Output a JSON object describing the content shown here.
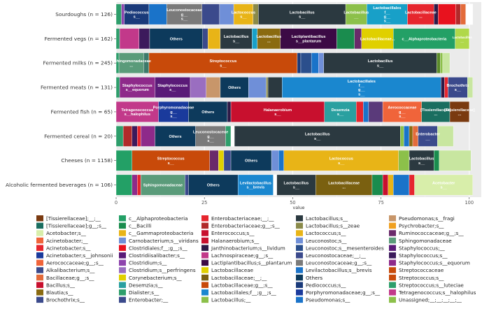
{
  "chart_data": {
    "type": "bar",
    "orientation": "horizontal",
    "stacked": true,
    "xlabel": "value",
    "ylabel": "",
    "title": "",
    "xlim": [
      0,
      100
    ],
    "xticks": [
      0,
      25,
      50,
      75,
      100
    ],
    "grid": true,
    "legend_position": "bottom",
    "categories": [
      "Sourdoughs (n = 126)",
      "Fermented vegs (n = 162)",
      "Fermented milks (n = 245)",
      "Fermented meats (n = 131)",
      "Fermented fish (n = 65)",
      "Fermented cereal (n = 20)",
      "Cheeses (n = 1158)",
      "Alcoholic fermented beverages (n = 106)"
    ],
    "bars": [
      {
        "segments": [
          {
            "value": 1.5,
            "color": "#2e9e6b",
            "label": ""
          },
          {
            "value": 0.8,
            "color": "#8e44ad",
            "label": ""
          },
          {
            "value": 7.0,
            "color": "#1a3a7a",
            "label": "Pediococcus\ns__"
          },
          {
            "value": 5.0,
            "color": "#1a73c9",
            "label": ""
          },
          {
            "value": 10.0,
            "color": "#7a7a7a",
            "label": "Leuconostocaceae\ng__\ns__"
          },
          {
            "value": 5.0,
            "color": "#3b4a8c",
            "label": ""
          },
          {
            "value": 4.0,
            "color": "#6f8fd8",
            "label": ""
          },
          {
            "value": 5.5,
            "color": "#e8b417",
            "label": "Lactococcus\ns__"
          },
          {
            "value": 1.5,
            "color": "#8a8a4a",
            "label": ""
          },
          {
            "value": 24.7,
            "color": "#2b3940",
            "label": "Lactobacillus\ns__"
          },
          {
            "value": 6.0,
            "color": "#8cc04a",
            "label": "Lactobacillus\n__"
          },
          {
            "value": 11.5,
            "color": "#18a0c8",
            "label": "Lactobacillales\nf__\ng__\ns__"
          },
          {
            "value": 7.5,
            "color": "#e6262e",
            "label": "Lactobacillaceae\n..."
          },
          {
            "value": 1.2,
            "color": "#2e1a47",
            "label": ""
          },
          {
            "value": 5.0,
            "color": "#e8121e",
            "label": ""
          },
          {
            "value": 1.3,
            "color": "#b12a2a",
            "label": ""
          },
          {
            "value": 1.5,
            "color": "#e36b3a",
            "label": ""
          },
          {
            "value": 2.0,
            "color": "#ffffff",
            "label": ""
          }
        ]
      },
      {
        "segments": [
          {
            "value": 1.0,
            "color": "#2e9e6b",
            "label": ""
          },
          {
            "value": 5.5,
            "color": "#c2398a",
            "label": ""
          },
          {
            "value": 3.0,
            "color": "#3c1a5c",
            "label": ""
          },
          {
            "value": 15.0,
            "color": "#0d3a5c",
            "label": "Others"
          },
          {
            "value": 1.5,
            "color": "#3b4a8c",
            "label": ""
          },
          {
            "value": 3.5,
            "color": "#e8b417",
            "label": ""
          },
          {
            "value": 9.0,
            "color": "#2b3940",
            "label": "Lactobacillus\ns__"
          },
          {
            "value": 1.5,
            "color": "#18a0c8",
            "label": ""
          },
          {
            "value": 6.5,
            "color": "#8a6a10",
            "label": "Lactobacillus\n..."
          },
          {
            "value": 16.0,
            "color": "#3c0a45",
            "label": "Lactiplantibacillus\ns__plantarum"
          },
          {
            "value": 5.0,
            "color": "#1a8c4e",
            "label": ""
          },
          {
            "value": 2.0,
            "color": "#6a2a6a",
            "label": ""
          },
          {
            "value": 9.0,
            "color": "#e0d000",
            "label": "Lactobacillaceae..."
          },
          {
            "value": 17.5,
            "color": "#23a066",
            "label": "c__Alphaproteobacteria"
          },
          {
            "value": 4.0,
            "color": "#b0d84a",
            "label": "Lactobacillus\n__"
          }
        ]
      },
      {
        "segments": [
          {
            "value": 0.8,
            "color": "#2e9e6b",
            "label": ""
          },
          {
            "value": 7.0,
            "color": "#5a9b7a",
            "label": "Sphingomonadaceae\n..."
          },
          {
            "value": 1.5,
            "color": "#3c7a6a",
            "label": ""
          },
          {
            "value": 42.0,
            "color": "#c84a0a",
            "label": "Streptococcus\ns__"
          },
          {
            "value": 1.0,
            "color": "#1a3a7a",
            "label": ""
          },
          {
            "value": 3.0,
            "color": "#2b4f8c",
            "label": ""
          },
          {
            "value": 2.0,
            "color": "#1a73c9",
            "label": ""
          },
          {
            "value": 1.5,
            "color": "#6f8fd8",
            "label": ""
          },
          {
            "value": 32.0,
            "color": "#2b3940",
            "label": "Lactobacillus\ns__"
          },
          {
            "value": 1.0,
            "color": "#5a8a2a",
            "label": ""
          },
          {
            "value": 0.7,
            "color": "#8cc04a",
            "label": ""
          },
          {
            "value": 2.0,
            "color": "#c8e6a0",
            "label": ""
          }
        ]
      },
      {
        "segments": [
          {
            "value": 1.0,
            "color": "#2e9e6b",
            "label": ""
          },
          {
            "value": 10.0,
            "color": "#8e2a8a",
            "label": "Staphylococcus\ns__equorum"
          },
          {
            "value": 10.0,
            "color": "#5a1a78",
            "label": "Staphylococcus\ns__"
          },
          {
            "value": 4.5,
            "color": "#9a6ec0",
            "label": ""
          },
          {
            "value": 4.0,
            "color": "#c8966a",
            "label": ""
          },
          {
            "value": 8.0,
            "color": "#0d3a5c",
            "label": "Others"
          },
          {
            "value": 5.0,
            "color": "#6f8fd8",
            "label": ""
          },
          {
            "value": 0.5,
            "color": "#8a8a4a",
            "label": ""
          },
          {
            "value": 4.0,
            "color": "#2b3940",
            "label": ""
          },
          {
            "value": 45.0,
            "color": "#1a87cf",
            "label": "Lactobacillales\nf__\ng__\ns__"
          },
          {
            "value": 1.0,
            "color": "#2e1a47",
            "label": ""
          },
          {
            "value": 1.0,
            "color": "#e6262e",
            "label": ""
          },
          {
            "value": 5.5,
            "color": "#3b4a8c",
            "label": "Brochothrix\ns__"
          },
          {
            "value": 1.5,
            "color": "#c8e6a0",
            "label": ""
          }
        ]
      },
      {
        "segments": [
          {
            "value": 12.0,
            "color": "#c2398a",
            "label": "Tetragenococcus\ns__halophilus"
          },
          {
            "value": 8.5,
            "color": "#1a3a9c",
            "label": "Porphyromonadaceae\ng__\ns__"
          },
          {
            "value": 11.0,
            "color": "#0d3a5c",
            "label": "Others"
          },
          {
            "value": 1.0,
            "color": "#2e1a47",
            "label": ""
          },
          {
            "value": 26.5,
            "color": "#c8102e",
            "label": "Halanaerobium\ns__"
          },
          {
            "value": 9.0,
            "color": "#2aa0a0",
            "label": "Desemzia\ns__"
          },
          {
            "value": 2.0,
            "color": "#e6262e",
            "label": ""
          },
          {
            "value": 1.5,
            "color": "#1a73c9",
            "label": ""
          },
          {
            "value": 4.0,
            "color": "#5a3a7a",
            "label": ""
          },
          {
            "value": 11.0,
            "color": "#f0643a",
            "label": "Aerococcaceae\ng__\ns__"
          },
          {
            "value": 8.0,
            "color": "#1a6e60",
            "label": "[Tissierellaceae]\n..."
          },
          {
            "value": 5.5,
            "color": "#7a3a10",
            "label": "[Tissierellaceae]\n..."
          }
        ]
      },
      {
        "segments": [
          {
            "value": 2.0,
            "color": "#2e9e6b",
            "label": ""
          },
          {
            "value": 2.5,
            "color": "#b12a2a",
            "label": ""
          },
          {
            "value": 1.5,
            "color": "#3c1a5c",
            "label": ""
          },
          {
            "value": 1.0,
            "color": "#e6262e",
            "label": ""
          },
          {
            "value": 4.0,
            "color": "#8e2a8a",
            "label": ""
          },
          {
            "value": 11.5,
            "color": "#0d3a5c",
            "label": "Others"
          },
          {
            "value": 8.5,
            "color": "#7a7a7a",
            "label": "Leuconostocaceae\ng__\ns__"
          },
          {
            "value": 1.5,
            "color": "#2e9e6b",
            "label": ""
          },
          {
            "value": 1.0,
            "color": "#ffffff",
            "label": ""
          },
          {
            "value": 47.0,
            "color": "#2b3940",
            "label": "Lactobacillus\ns__"
          },
          {
            "value": 1.0,
            "color": "#8cc04a",
            "label": ""
          },
          {
            "value": 1.5,
            "color": "#1a73c9",
            "label": ""
          },
          {
            "value": 1.0,
            "color": "#8a6a10",
            "label": ""
          },
          {
            "value": 1.5,
            "color": "#e36b3a",
            "label": ""
          },
          {
            "value": 5.5,
            "color": "#3b4a8c",
            "label": "Enterobacter\n__"
          },
          {
            "value": 4.5,
            "color": "#c8e6a0",
            "label": ""
          }
        ]
      },
      {
        "segments": [
          {
            "value": 4.5,
            "color": "#23a066",
            "label": ""
          },
          {
            "value": 22.0,
            "color": "#c84a0a",
            "label": "Streptococcus\ns__"
          },
          {
            "value": 2.5,
            "color": "#6a2a6a",
            "label": ""
          },
          {
            "value": 1.5,
            "color": "#e0d000",
            "label": ""
          },
          {
            "value": 2.0,
            "color": "#3b4a8c",
            "label": ""
          },
          {
            "value": 11.5,
            "color": "#0d3a5c",
            "label": "Others"
          },
          {
            "value": 2.0,
            "color": "#6f8fd8",
            "label": ""
          },
          {
            "value": 1.5,
            "color": "#1a73c9",
            "label": ""
          },
          {
            "value": 32.5,
            "color": "#e8b417",
            "label": "Lactococcus\ns__"
          },
          {
            "value": 3.0,
            "color": "#8cc04a",
            "label": ""
          },
          {
            "value": 7.0,
            "color": "#2b3940",
            "label": "Lactobacillus\ns__"
          },
          {
            "value": 1.5,
            "color": "#1a8c4e",
            "label": ""
          },
          {
            "value": 9.0,
            "color": "#c8e6a0",
            "label": ""
          }
        ]
      },
      {
        "segments": [
          {
            "value": 4.5,
            "color": "#23a066",
            "label": ""
          },
          {
            "value": 1.5,
            "color": "#8e2a8a",
            "label": ""
          },
          {
            "value": 1.0,
            "color": "#e6262e",
            "label": ""
          },
          {
            "value": 12.5,
            "color": "#5a9b7a",
            "label": "Sphingomonadaceae"
          },
          {
            "value": 1.0,
            "color": "#3b4a8c",
            "label": ""
          },
          {
            "value": 14.0,
            "color": "#0d3a5c",
            "label": "Others"
          },
          {
            "value": 10.0,
            "color": "#1a87cf",
            "label": "Levilactobacillus\ns__brevis"
          },
          {
            "value": 1.0,
            "color": "#ffffff",
            "label": ""
          },
          {
            "value": 11.0,
            "color": "#2b3940",
            "label": "Lactobacillus\ns__"
          },
          {
            "value": 16.0,
            "color": "#7a6010",
            "label": "Lactobacillaceae\n..."
          },
          {
            "value": 3.0,
            "color": "#1a8c4e",
            "label": ""
          },
          {
            "value": 1.5,
            "color": "#c8102e",
            "label": ""
          },
          {
            "value": 1.5,
            "color": "#e8b417",
            "label": ""
          },
          {
            "value": 4.5,
            "color": "#1a73c9",
            "label": ""
          },
          {
            "value": 1.5,
            "color": "#e6262e",
            "label": ""
          },
          {
            "value": 16.5,
            "color": "#d8eeaa",
            "label": "Acetobacter\ns__"
          }
        ]
      }
    ],
    "legend": [
      {
        "label": "[Tissierellaceae];__;__",
        "color": "#7a3a10"
      },
      {
        "label": "[Tissierellaceae];g__;s__",
        "color": "#1a6e60"
      },
      {
        "label": "Acetobacter;s__",
        "color": "#d8eeaa"
      },
      {
        "label": "Acinetobacter;__",
        "color": "#f0643a"
      },
      {
        "label": "Acinetobacter;s__",
        "color": "#e6262e"
      },
      {
        "label": "Acinetobacter;s__johnsonii",
        "color": "#1a3a9c"
      },
      {
        "label": "Aerococcaceae;g__;s__",
        "color": "#f0643a"
      },
      {
        "label": "Alkalibacterium;s__",
        "color": "#3b4a8c"
      },
      {
        "label": "Bacillaceae;g__;s__",
        "color": "#e36b3a"
      },
      {
        "label": "Bacillus;s__",
        "color": "#c8102e"
      },
      {
        "label": "Blautia;s__",
        "color": "#8a6a10"
      },
      {
        "label": "Brochothrix;s__",
        "color": "#3b4a8c"
      },
      {
        "label": "c__Alphaproteobacteria",
        "color": "#23a066"
      },
      {
        "label": "c__Bacilli",
        "color": "#1a8c4e"
      },
      {
        "label": "c__Gammaproteobacteria",
        "color": "#e8b417"
      },
      {
        "label": "Carnobacterium;s__viridans",
        "color": "#6f8fd8"
      },
      {
        "label": "Clostridiales;f__;g__;s__",
        "color": "#e8121e"
      },
      {
        "label": "Clostridiisalibacter;s__",
        "color": "#5a1a78"
      },
      {
        "label": "Clostridium;s__",
        "color": "#8e44ad"
      },
      {
        "label": "Clostridium;s__perfringens",
        "color": "#9a6ec0"
      },
      {
        "label": "Corynebacterium;s__",
        "color": "#e0d000"
      },
      {
        "label": "Desemzia;s__",
        "color": "#2aa0a0"
      },
      {
        "label": "Dialister;s__",
        "color": "#2e9e6b"
      },
      {
        "label": "Enterobacter;__",
        "color": "#3b4a8c"
      },
      {
        "label": "Enterobacteriaceae;__;__",
        "color": "#e6262e"
      },
      {
        "label": "Enterobacteriaceae;g__;s__",
        "color": "#b12a2a"
      },
      {
        "label": "Enterococcus;s__",
        "color": "#c8102e"
      },
      {
        "label": "Halanaerobium;s__",
        "color": "#c8102e"
      },
      {
        "label": "Janthinobacterium;s__lividum",
        "color": "#2e1a47"
      },
      {
        "label": "Lachnospiraceae;g__;s__",
        "color": "#c2398a"
      },
      {
        "label": "Lactiplantibacillus;s__plantarum",
        "color": "#3c0a45"
      },
      {
        "label": "Lactobacillaceae",
        "color": "#e0d000"
      },
      {
        "label": "Lactobacillaceae;__;__",
        "color": "#7a6010"
      },
      {
        "label": "Lactobacillaceae;g__;s__",
        "color": "#c84a0a"
      },
      {
        "label": "Lactobacillales;f__;g__;s__",
        "color": "#1a87cf"
      },
      {
        "label": "Lactobacillus;__",
        "color": "#8cc04a"
      },
      {
        "label": "Lactobacillus;s__",
        "color": "#2b3940"
      },
      {
        "label": "Lactobacillus;s__zeae",
        "color": "#8a8a4a"
      },
      {
        "label": "Lactococcus;s__",
        "color": "#e8b417"
      },
      {
        "label": "Leuconostoc;s__",
        "color": "#6f8fd8"
      },
      {
        "label": "Leuconostoc;s__mesenteroides",
        "color": "#2b4f8c"
      },
      {
        "label": "Leuconostocaceae;__;__",
        "color": "#3b4a8c"
      },
      {
        "label": "Leuconostocaceae;g__;s__",
        "color": "#7a7a7a"
      },
      {
        "label": "Levilactobacillus;s__brevis",
        "color": "#1a73c9"
      },
      {
        "label": "Others",
        "color": "#0d3a5c"
      },
      {
        "label": "Pediococcus;s__",
        "color": "#1a3a7a"
      },
      {
        "label": "Porphyromonadaceae;g__;s__",
        "color": "#1a3a9c"
      },
      {
        "label": "Pseudomonas;s__",
        "color": "#1a73c9"
      },
      {
        "label": "Pseudomonas;s__fragi",
        "color": "#c8966a"
      },
      {
        "label": "Psychrobacter;s__",
        "color": "#f0a020"
      },
      {
        "label": "Ruminococcaceae;g__;s__",
        "color": "#6a2a6a"
      },
      {
        "label": "Sphingomonadaceae",
        "color": "#5a9b7a"
      },
      {
        "label": "Staphylococcus;__",
        "color": "#5a1a78"
      },
      {
        "label": "Staphylococcus;s__",
        "color": "#3c1a5c"
      },
      {
        "label": "Staphylococcus;s__equorum",
        "color": "#8e2a8a"
      },
      {
        "label": "Streptococcaceae",
        "color": "#c84a0a"
      },
      {
        "label": "Streptococcus;s__",
        "color": "#c84a0a"
      },
      {
        "label": "Streptococcus;s__luteciae",
        "color": "#2e9e6b"
      },
      {
        "label": "Tetragenococcus;s__halophilus",
        "color": "#c2398a"
      },
      {
        "label": "Unassigned;__;__;__;__;__",
        "color": "#8cc04a"
      }
    ]
  }
}
